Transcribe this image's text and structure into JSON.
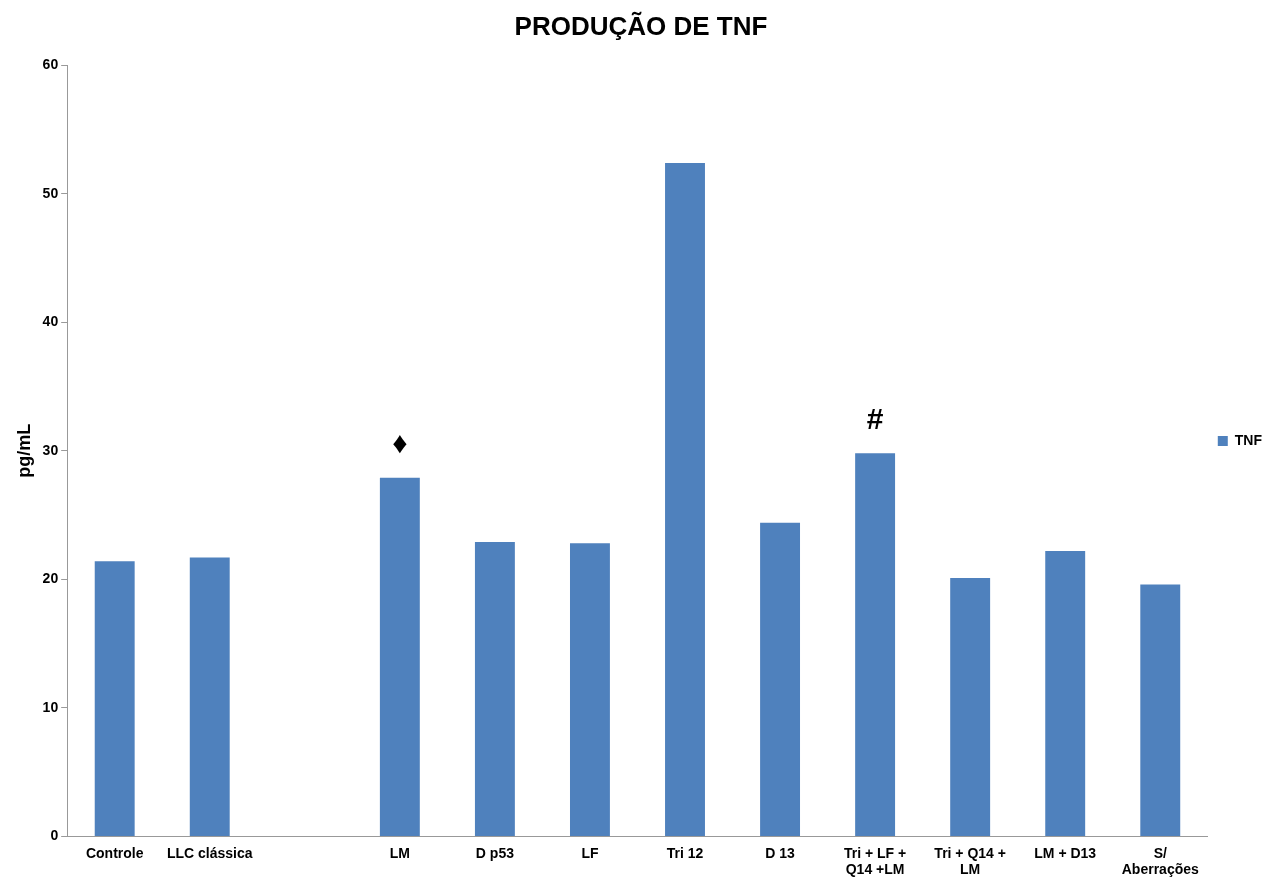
{
  "chart_data": {
    "type": "bar",
    "title": "PRODUÇÃO DE TNF",
    "ylabel": "pg/mL",
    "categories": [
      "Controle",
      "LLC clássica",
      null,
      "LM",
      "D p53",
      "LF",
      "Tri 12",
      "D 13",
      "Tri + LF + Q14 +LM",
      "Tri + Q14 + LM",
      "LM + D13",
      "S/ Aberrações"
    ],
    "series": [
      {
        "name": "TNF",
        "color": "#4f81bd",
        "values": [
          21.4,
          21.7,
          null,
          27.9,
          22.9,
          22.8,
          52.4,
          24.4,
          29.8,
          20.1,
          22.2,
          19.6
        ]
      }
    ],
    "ylim": [
      0,
      60
    ],
    "yticks": [
      0,
      10,
      20,
      30,
      40,
      50,
      60
    ],
    "grid": false,
    "legend": "right",
    "annotations": [
      {
        "text": "♦",
        "x": "LM",
        "y": 27.9
      },
      {
        "text": "#",
        "x": "Tri + LF + Q14 +LM",
        "y": 29.8
      }
    ]
  }
}
